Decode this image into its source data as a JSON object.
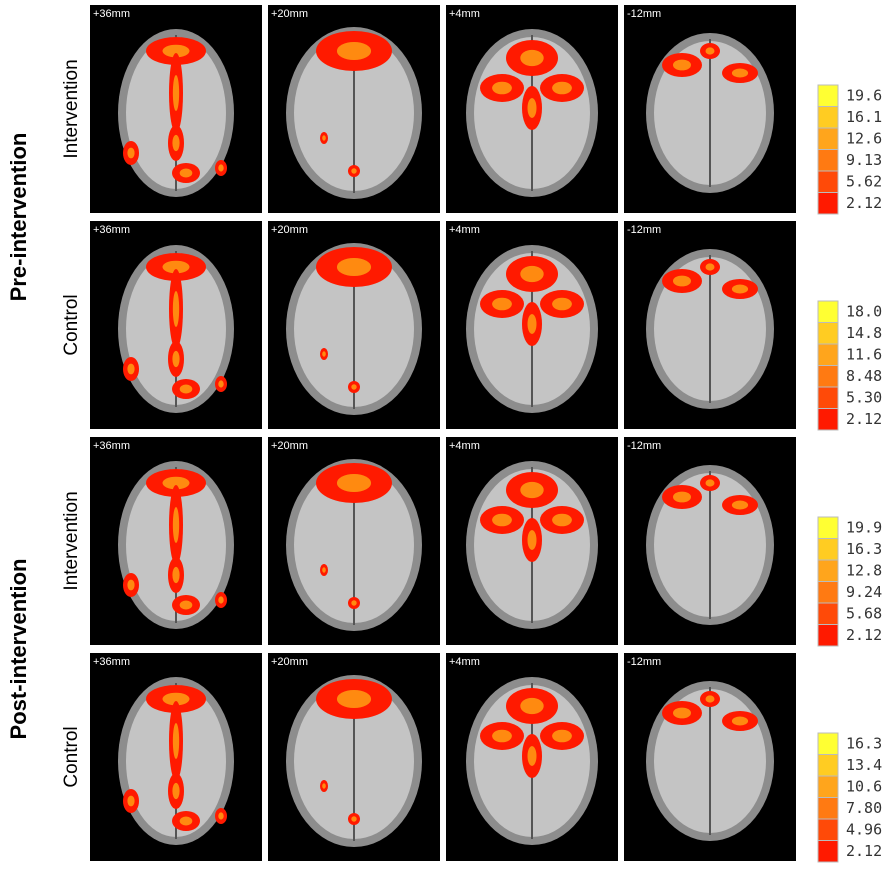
{
  "groups": [
    {
      "label": "Pre-intervention",
      "rows": [
        {
          "label": "Intervention",
          "slices": [
            "+36mm",
            "+20mm",
            "+4mm",
            "-12mm"
          ],
          "colorbar": [
            "19.6",
            "16.1",
            "12.6",
            "9.13",
            "5.62",
            "2.12"
          ]
        },
        {
          "label": "Control",
          "slices": [
            "+36mm",
            "+20mm",
            "+4mm",
            "-12mm"
          ],
          "colorbar": [
            "18.0",
            "14.8",
            "11.6",
            "8.48",
            "5.30",
            "2.12"
          ]
        }
      ]
    },
    {
      "label": "Post-intervention",
      "rows": [
        {
          "label": "Intervention",
          "slices": [
            "+36mm",
            "+20mm",
            "+4mm",
            "-12mm"
          ],
          "colorbar": [
            "19.9",
            "16.3",
            "12.8",
            "9.24",
            "5.68",
            "2.12"
          ]
        },
        {
          "label": "Control",
          "slices": [
            "+36mm",
            "+20mm",
            "+4mm",
            "-12mm"
          ],
          "colorbar": [
            "16.3",
            "13.4",
            "10.6",
            "7.80",
            "4.96",
            "2.12"
          ]
        }
      ]
    }
  ]
}
